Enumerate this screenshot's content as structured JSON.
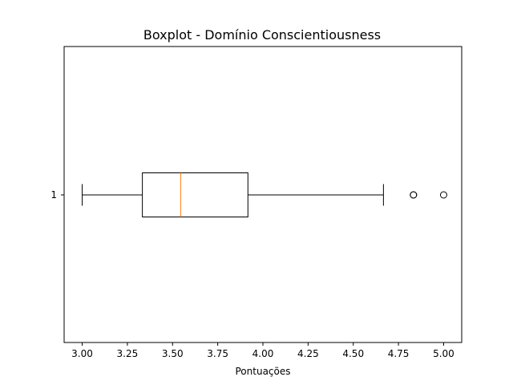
{
  "chart_data": {
    "type": "boxplot",
    "orientation": "horizontal",
    "title": "Boxplot - Domínio Conscientiousness",
    "xlabel": "Pontuações",
    "ylabel": "",
    "xlim": [
      2.9,
      5.1
    ],
    "x_ticks": [
      3.0,
      3.25,
      3.5,
      3.75,
      4.0,
      4.25,
      4.5,
      4.75,
      5.0
    ],
    "x_tick_labels": [
      "3.00",
      "3.25",
      "3.50",
      "3.75",
      "4.00",
      "4.25",
      "4.50",
      "4.75",
      "5.00"
    ],
    "categories": [
      "1"
    ],
    "boxes": [
      {
        "whisker_low": 3.0,
        "q1": 3.333,
        "median": 3.545,
        "q3": 3.917,
        "whisker_high": 4.667,
        "outliers": [
          4.833,
          4.833,
          5.0
        ]
      }
    ],
    "grid": false,
    "colors": {
      "box": "#000000",
      "median": "#ff7f0e",
      "whisker": "#000000",
      "outlier": "#000000"
    }
  }
}
